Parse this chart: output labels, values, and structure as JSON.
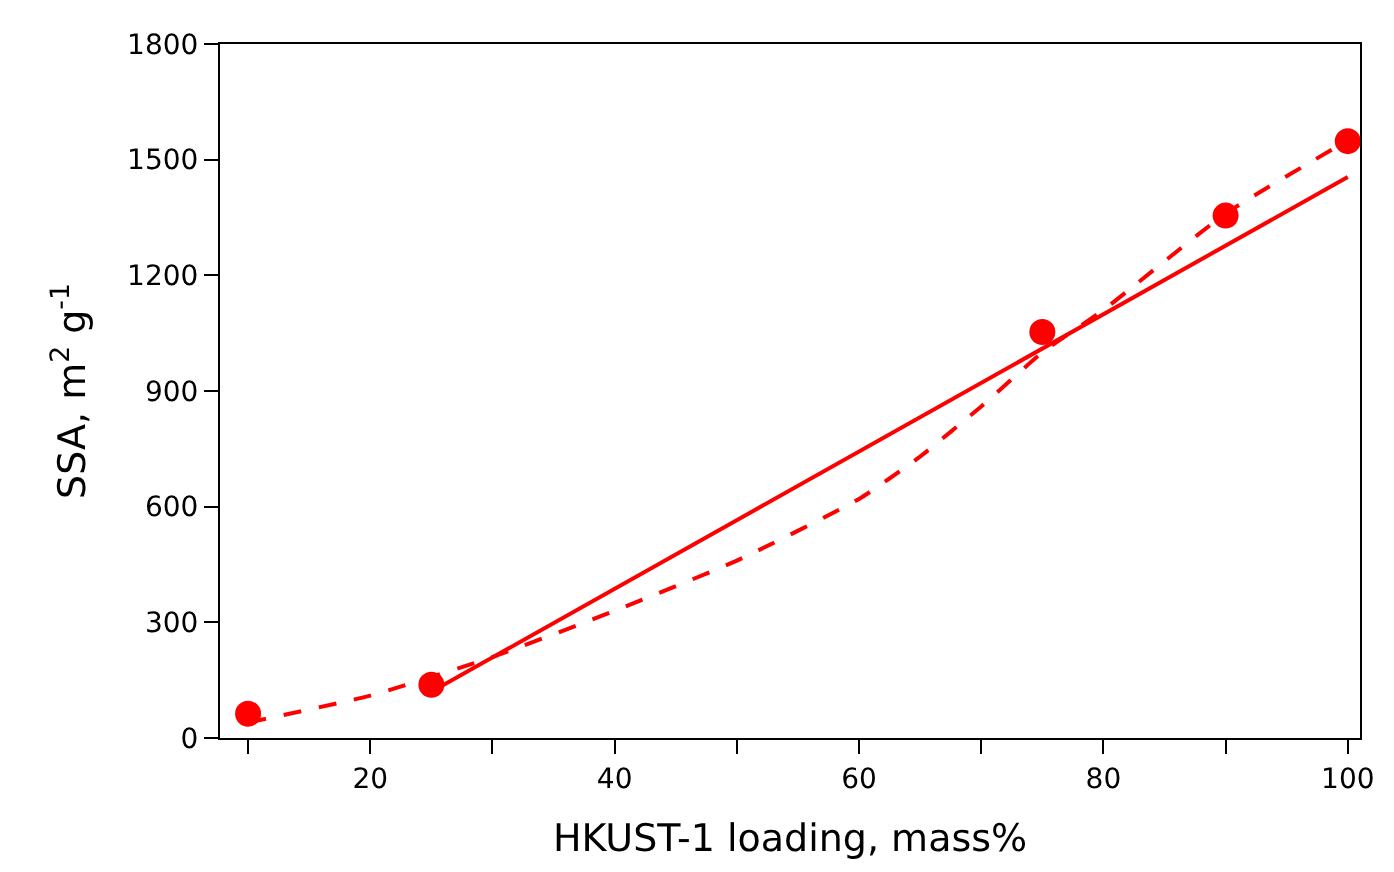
{
  "chart_data": {
    "type": "scatter",
    "xlabel": "HKUST-1 loading, mass%",
    "ylabel": "SSA, m$^{2}$ g$^{-1}$",
    "xlim": [
      7.7,
      101
    ],
    "ylim": [
      0,
      1800
    ],
    "xticks": [
      {
        "value": 10,
        "label": null
      },
      20,
      {
        "value": 30,
        "label": null
      },
      40,
      {
        "value": 50,
        "label": null
      },
      60,
      {
        "value": 70,
        "label": null
      },
      80,
      {
        "value": 90,
        "label": null
      },
      100
    ],
    "yticks": [
      0,
      300,
      600,
      900,
      1200,
      1500,
      1800
    ],
    "series": [
      {
        "color": "#ff0000",
        "marker": "circle",
        "x": [
          10,
          25,
          75,
          90,
          100
        ],
        "values": [
          63,
          138,
          1053,
          1355,
          1548
        ]
      },
      {
        "type": "line",
        "color": "#ff0000",
        "line_style": "solid",
        "marker": "none",
        "x": [
          25,
          100
        ],
        "values": [
          120,
          1455
        ]
      },
      {
        "type": "line",
        "color": "#ff0000",
        "line_style": "dashed",
        "marker": "none",
        "x": [
          10,
          20,
          30,
          40,
          50,
          60,
          65,
          70,
          75,
          80,
          90,
          100
        ],
        "values": [
          40,
          110,
          210,
          330,
          460,
          620,
          730,
          860,
          1000,
          1110,
          1360,
          1550
        ]
      }
    ]
  }
}
